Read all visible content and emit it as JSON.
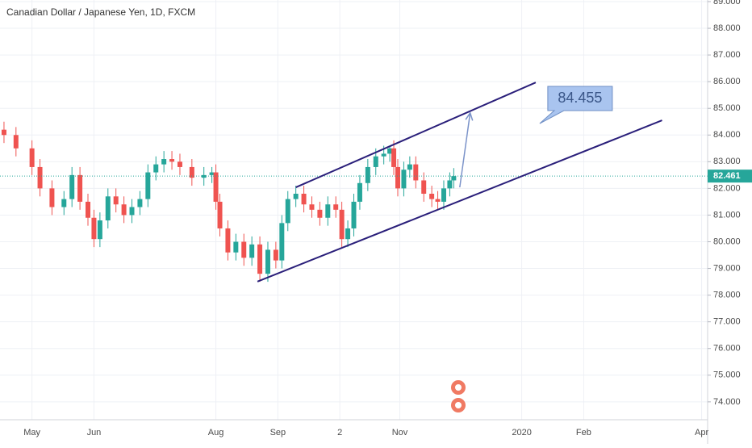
{
  "chart_data": {
    "type": "candlestick",
    "title": "Canadian Dollar / Japanese Yen, 1D, FXCM",
    "up_color": "#26a69a",
    "down_color": "#ef5350",
    "grid": true,
    "xlim": [
      14,
      368
    ],
    "ylim": [
      73.33,
      89.06
    ],
    "xticks": [
      {
        "value": 30,
        "label": "May"
      },
      {
        "value": 61,
        "label": "Jun"
      },
      {
        "value": 122,
        "label": "Aug"
      },
      {
        "value": 153,
        "label": "Sep"
      },
      {
        "value": 184,
        "label": "2"
      },
      {
        "value": 214,
        "label": "Nov"
      },
      {
        "value": 275,
        "label": "2020"
      },
      {
        "value": 306,
        "label": "Feb"
      },
      {
        "value": 365,
        "label": "Apr"
      }
    ],
    "yticks": [
      {
        "value": 74,
        "label": "74.000"
      },
      {
        "value": 75,
        "label": "75.000"
      },
      {
        "value": 76,
        "label": "76.000"
      },
      {
        "value": 77,
        "label": "77.000"
      },
      {
        "value": 78,
        "label": "78.000"
      },
      {
        "value": 79,
        "label": "79.000"
      },
      {
        "value": 80,
        "label": "80.000"
      },
      {
        "value": 81,
        "label": "81.000"
      },
      {
        "value": 82,
        "label": "82.000"
      },
      {
        "value": 83,
        "label": "83.000"
      },
      {
        "value": 84,
        "label": "84.000"
      },
      {
        "value": 85,
        "label": "85.000"
      },
      {
        "value": 86,
        "label": "86.000"
      },
      {
        "value": 87,
        "label": "87.000"
      },
      {
        "value": 88,
        "label": "88.000"
      },
      {
        "value": 89,
        "label": "89.000"
      }
    ],
    "x": [
      16,
      22,
      30,
      34,
      40,
      46,
      50,
      54,
      58,
      61,
      64,
      68,
      72,
      76,
      80,
      84,
      88,
      92,
      96,
      100,
      104,
      110,
      116,
      120,
      122,
      124,
      128,
      132,
      136,
      140,
      144,
      148,
      152,
      155,
      158,
      162,
      166,
      170,
      174,
      178,
      182,
      185,
      188,
      191,
      194,
      198,
      202,
      206,
      209,
      211,
      213,
      216,
      219,
      222,
      226,
      230,
      233,
      236,
      239,
      241
    ],
    "open": [
      84.2,
      84.0,
      83.5,
      82.8,
      82.0,
      81.3,
      81.6,
      82.5,
      81.5,
      80.9,
      80.1,
      80.8,
      81.7,
      81.4,
      81.0,
      81.3,
      81.6,
      82.6,
      82.9,
      83.1,
      83.0,
      82.8,
      82.4,
      82.5,
      82.6,
      81.5,
      80.5,
      79.6,
      80.0,
      79.4,
      79.9,
      78.8,
      79.7,
      79.3,
      80.7,
      81.6,
      81.8,
      81.4,
      81.2,
      80.9,
      81.4,
      81.2,
      80.1,
      80.5,
      81.5,
      82.2,
      82.8,
      83.2,
      83.3,
      83.5,
      82.8,
      82.0,
      82.7,
      82.9,
      82.3,
      81.8,
      81.6,
      81.5,
      82.0,
      82.3
    ],
    "high": [
      84.5,
      84.3,
      83.8,
      83.1,
      82.3,
      81.9,
      82.8,
      82.8,
      81.8,
      81.2,
      81.1,
      82.0,
      82.0,
      81.7,
      81.6,
      81.9,
      82.9,
      83.2,
      83.4,
      83.4,
      83.3,
      83.1,
      82.8,
      82.8,
      82.9,
      81.8,
      80.8,
      80.3,
      80.3,
      80.2,
      80.2,
      80.0,
      80.0,
      81.0,
      81.9,
      82.1,
      82.1,
      81.7,
      81.5,
      81.7,
      81.7,
      81.5,
      80.8,
      81.8,
      82.5,
      83.1,
      83.5,
      83.6,
      83.6,
      83.8,
      83.1,
      83.0,
      83.2,
      83.2,
      82.6,
      82.1,
      81.9,
      82.3,
      82.6,
      82.761
    ],
    "low": [
      83.7,
      83.2,
      82.5,
      81.7,
      81.0,
      81.0,
      81.3,
      81.2,
      80.6,
      79.8,
      79.8,
      80.5,
      81.1,
      80.7,
      80.7,
      81.0,
      81.3,
      82.3,
      82.6,
      82.7,
      82.5,
      82.1,
      82.1,
      82.2,
      81.2,
      80.2,
      79.3,
      79.3,
      79.1,
      79.1,
      78.5,
      78.5,
      79.0,
      79.0,
      80.4,
      81.3,
      81.1,
      80.9,
      80.6,
      80.6,
      80.9,
      79.8,
      79.8,
      80.2,
      81.2,
      81.9,
      82.5,
      82.9,
      83.0,
      82.5,
      81.7,
      81.7,
      82.4,
      82.0,
      81.5,
      81.3,
      81.2,
      81.2,
      81.7,
      82.0
    ],
    "close": [
      84.0,
      83.5,
      82.8,
      82.0,
      81.3,
      81.6,
      82.5,
      81.5,
      80.9,
      80.1,
      80.8,
      81.7,
      81.4,
      81.0,
      81.3,
      81.6,
      82.6,
      82.9,
      83.1,
      83.0,
      82.8,
      82.4,
      82.5,
      82.6,
      81.5,
      80.5,
      79.6,
      80.0,
      79.4,
      79.9,
      78.8,
      79.7,
      79.3,
      80.7,
      81.6,
      81.8,
      81.4,
      81.2,
      80.9,
      81.4,
      81.2,
      80.1,
      80.5,
      81.5,
      82.2,
      82.8,
      83.2,
      83.3,
      83.5,
      82.8,
      82.0,
      82.7,
      82.9,
      82.3,
      81.8,
      81.6,
      81.5,
      82.0,
      82.3,
      82.461
    ],
    "last_price": 82.461,
    "trendlines": [
      {
        "x": [
          162,
          282
        ],
        "y": [
          82.04,
          85.97
        ],
        "color": "#2a1f7a"
      },
      {
        "x": [
          142.8,
          345.2
        ],
        "y": [
          78.51,
          84.55
        ],
        "color": "#2a1f7a"
      }
    ],
    "arrow": {
      "x": [
        244,
        249.2
      ],
      "y": [
        82.04,
        84.83
      ],
      "color": "#7b93c9"
    },
    "callout": {
      "x": 284,
      "y": 84.43,
      "label": 84.455
    }
  }
}
